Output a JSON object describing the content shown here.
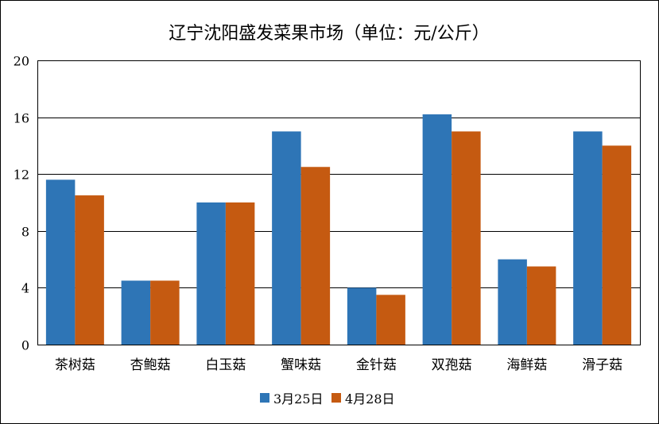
{
  "chart_data": {
    "type": "bar",
    "title": "辽宁沈阳盛发菜果市场（单位：元/公斤）",
    "categories": [
      "茶树菇",
      "杏鲍菇",
      "白玉菇",
      "蟹味菇",
      "金针菇",
      "双孢菇",
      "海鲜菇",
      "滑子菇"
    ],
    "series": [
      {
        "name": "3月25日",
        "color": "#2E75B6",
        "values": [
          11.6,
          4.5,
          10,
          15,
          4,
          16.2,
          6,
          15
        ]
      },
      {
        "name": "4月28日",
        "color": "#C55A11",
        "values": [
          10.5,
          4.5,
          10,
          12.5,
          3.5,
          15,
          5.5,
          14
        ]
      }
    ],
    "ylim": [
      0,
      20
    ],
    "yticks": [
      0,
      4,
      8,
      12,
      16,
      20
    ],
    "grid": true,
    "legend": "bottom"
  }
}
